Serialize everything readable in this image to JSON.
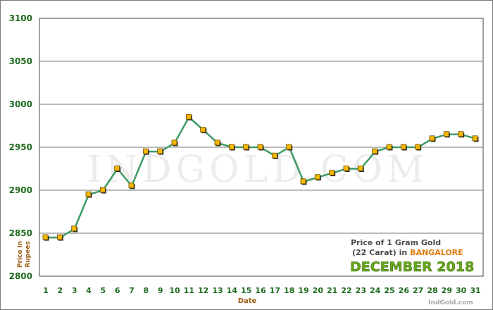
{
  "chart_data": {
    "type": "line",
    "title": "",
    "xlabel": "Date",
    "ylabel": "Price in Rupees",
    "ylim": [
      2800,
      3100
    ],
    "yticks": [
      2800,
      2850,
      2900,
      2950,
      3000,
      3050,
      3100
    ],
    "grid": true,
    "x": [
      "1",
      "2",
      "3",
      "4",
      "5",
      "6",
      "7",
      "8",
      "9",
      "10",
      "11",
      "12",
      "13",
      "14",
      "15",
      "16",
      "17",
      "18",
      "19",
      "20",
      "21",
      "22",
      "23",
      "24",
      "25",
      "26",
      "27",
      "28",
      "29",
      "30",
      "31"
    ],
    "series": [
      {
        "name": "",
        "values": [
          2845,
          2845,
          2855,
          2895,
          2900,
          2925,
          2905,
          2945,
          2945,
          2955,
          2985,
          2970,
          2955,
          2950,
          2950,
          2950,
          2940,
          2950,
          2910,
          2915,
          2920,
          2925,
          2925,
          2945,
          2950,
          2950,
          2950,
          2960,
          2965,
          2965,
          2960
        ]
      }
    ],
    "colors": {
      "line": "#3d9b66",
      "marker": "#f5b800",
      "axis_text": "#1e6b1e",
      "label_text": "#9a5a12"
    }
  },
  "watermark": "INDGOLD.COM",
  "legend": {
    "line1": "Price of 1 Gram Gold",
    "line2_prefix": "(22 Carat) in ",
    "city": "BANGALORE",
    "month": "DECEMBER 2018"
  },
  "brand": "IndGold.com"
}
